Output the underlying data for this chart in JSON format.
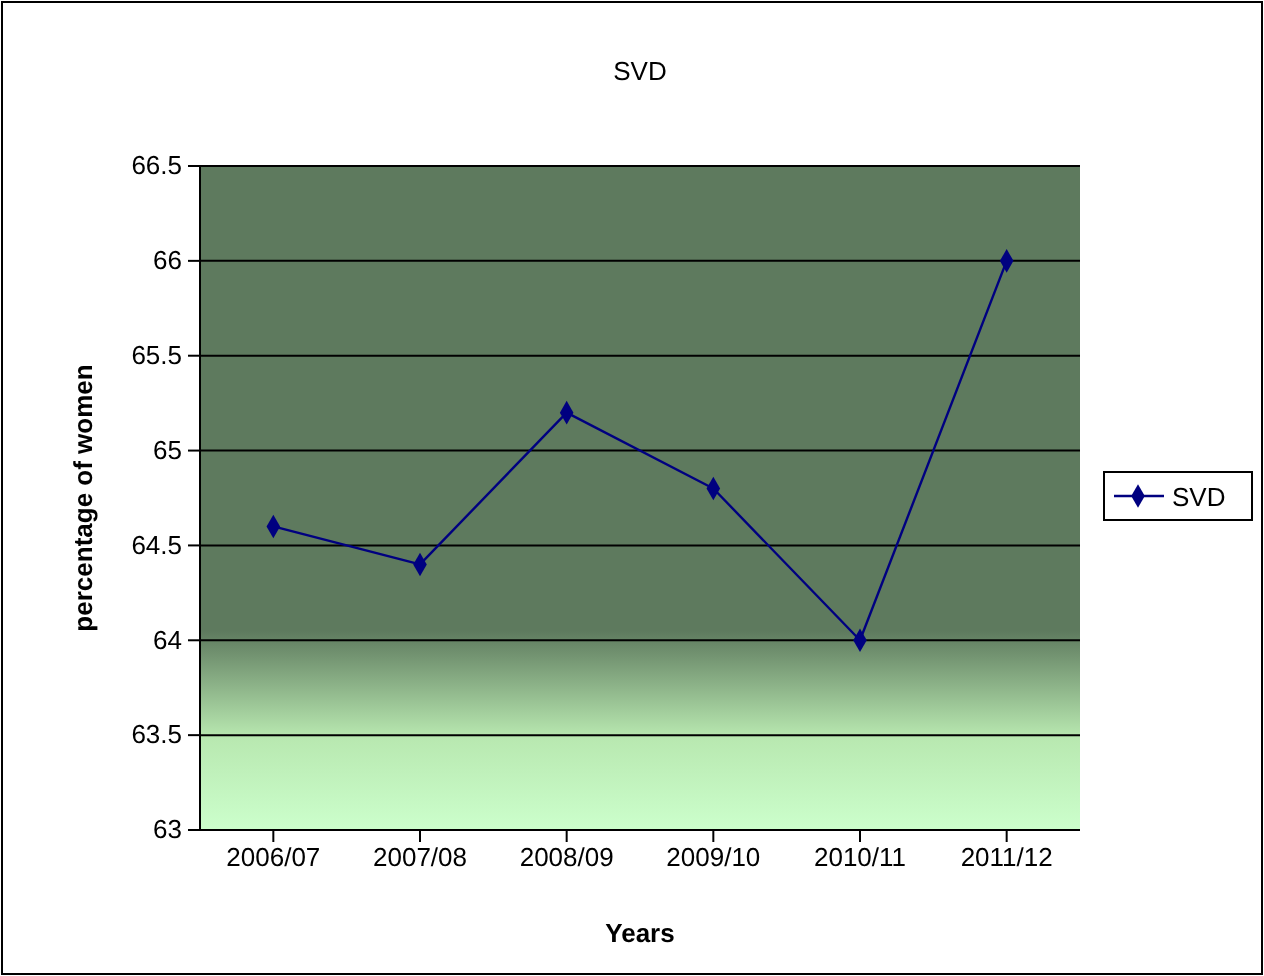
{
  "chart_data": {
    "type": "line",
    "title": "SVD",
    "xlabel": "Years",
    "ylabel": "percentage of women",
    "categories": [
      "2006/07",
      "2007/08",
      "2008/09",
      "2009/10",
      "2010/11",
      "2011/12"
    ],
    "series": [
      {
        "name": "SVD",
        "color": "#000080",
        "values": [
          64.6,
          64.4,
          65.2,
          64.8,
          64.0,
          66.0
        ]
      }
    ],
    "ylim": [
      63,
      66.5
    ],
    "yticks": [
      63,
      63.5,
      64,
      64.5,
      65,
      65.5,
      66,
      66.5
    ],
    "grid": "y",
    "legend": "right",
    "marker": "diamond",
    "line_style": "solid"
  }
}
